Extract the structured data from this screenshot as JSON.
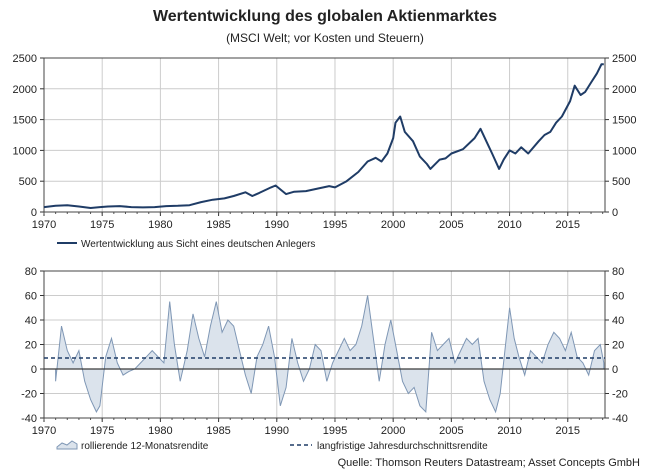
{
  "title": "Wertentwicklung des globalen Aktienmarktes",
  "subtitle": "(MSCI Welt; vor Kosten und Steuern)",
  "source": "Quelle: Thomson Reuters Datastream; Asset Concepts GmbH",
  "colors": {
    "line": "#1f3c66",
    "area_fill": "#dbe3ec",
    "area_stroke": "#7f97b5",
    "grid": "#cccccc",
    "zero_line": "#3a3a3a"
  },
  "chart_data": [
    {
      "type": "line",
      "xlabel": "",
      "ylabel": "",
      "xlim": [
        1970,
        2018.2
      ],
      "ylim": [
        0,
        2500
      ],
      "x_ticks": [
        "1970",
        "1975",
        "1980",
        "1985",
        "1990",
        "1995",
        "2000",
        "2005",
        "2010",
        "2015"
      ],
      "y_ticks": [
        "0",
        "500",
        "1000",
        "1500",
        "2000",
        "2500"
      ],
      "grid": true,
      "legend": "bottom-left",
      "series": [
        {
          "name": "Wertentwicklung aus Sicht eines deutschen Anlegers",
          "x": [
            1970.0,
            1971.0,
            1972.0,
            1973.0,
            1974.0,
            1974.8,
            1975.5,
            1976.5,
            1977.5,
            1978.5,
            1979.5,
            1980.5,
            1981.5,
            1982.5,
            1983.5,
            1984.5,
            1985.5,
            1986.3,
            1987.3,
            1987.9,
            1988.5,
            1989.5,
            1989.9,
            1990.8,
            1991.5,
            1992.5,
            1993.5,
            1994.5,
            1995.0,
            1996.0,
            1997.0,
            1997.8,
            1998.5,
            1999.0,
            1999.5,
            2000.0,
            2000.2,
            2000.6,
            2001.0,
            2001.7,
            2002.3,
            2002.9,
            2003.2,
            2004.0,
            2004.5,
            2005.0,
            2006.0,
            2007.0,
            2007.5,
            2008.0,
            2008.5,
            2009.1,
            2009.5,
            2010.0,
            2010.5,
            2011.0,
            2011.6,
            2012.5,
            2013.0,
            2013.5,
            2014.0,
            2014.5,
            2015.2,
            2015.6,
            2016.1,
            2016.5,
            2017.0,
            2017.5,
            2017.9,
            2018.1
          ],
          "values": [
            80,
            100,
            110,
            90,
            65,
            80,
            90,
            95,
            80,
            75,
            80,
            95,
            100,
            110,
            160,
            200,
            220,
            260,
            320,
            260,
            310,
            400,
            430,
            290,
            330,
            340,
            380,
            420,
            400,
            500,
            650,
            820,
            880,
            820,
            950,
            1200,
            1450,
            1550,
            1300,
            1150,
            900,
            780,
            700,
            850,
            870,
            950,
            1020,
            1200,
            1350,
            1150,
            950,
            700,
            850,
            1000,
            950,
            1050,
            950,
            1150,
            1250,
            1300,
            1450,
            1550,
            1800,
            2050,
            1900,
            1950,
            2100,
            2250,
            2400,
            2400
          ]
        }
      ]
    },
    {
      "type": "area",
      "xlabel": "",
      "ylabel": "",
      "xlim": [
        1970,
        2018.2
      ],
      "ylim": [
        -40,
        80
      ],
      "x_ticks": [
        "1970",
        "1975",
        "1980",
        "1985",
        "1990",
        "1995",
        "2000",
        "2005",
        "2010",
        "2015"
      ],
      "y_ticks": [
        "-40",
        "-20",
        "0",
        "20",
        "40",
        "60",
        "80"
      ],
      "grid": true,
      "legend": "bottom-left",
      "series": [
        {
          "name": "rollierende 12-Monatsrendite",
          "x": [
            1971.0,
            1971.5,
            1972.0,
            1972.5,
            1973.0,
            1973.5,
            1974.0,
            1974.5,
            1974.8,
            1975.3,
            1975.8,
            1976.3,
            1976.8,
            1977.3,
            1977.8,
            1978.3,
            1978.8,
            1979.3,
            1979.8,
            1980.3,
            1980.8,
            1981.2,
            1981.7,
            1982.3,
            1982.8,
            1983.3,
            1983.8,
            1984.3,
            1984.8,
            1985.3,
            1985.8,
            1986.3,
            1986.8,
            1987.3,
            1987.8,
            1988.3,
            1988.8,
            1989.3,
            1989.8,
            1990.3,
            1990.8,
            1991.3,
            1991.8,
            1992.3,
            1992.8,
            1993.3,
            1993.8,
            1994.3,
            1994.8,
            1995.3,
            1995.8,
            1996.3,
            1996.8,
            1997.3,
            1997.8,
            1998.3,
            1998.8,
            1999.3,
            1999.8,
            2000.3,
            2000.8,
            2001.3,
            2001.8,
            2002.3,
            2002.8,
            2003.3,
            2003.8,
            2004.3,
            2004.8,
            2005.3,
            2005.8,
            2006.3,
            2006.8,
            2007.3,
            2007.8,
            2008.3,
            2008.8,
            2009.2,
            2009.6,
            2010.0,
            2010.4,
            2010.8,
            2011.3,
            2011.8,
            2012.3,
            2012.8,
            2013.3,
            2013.8,
            2014.3,
            2014.8,
            2015.3,
            2015.8,
            2016.3,
            2016.8,
            2017.3,
            2017.8,
            2018.1
          ],
          "values": [
            -10,
            35,
            15,
            5,
            15,
            -10,
            -25,
            -35,
            -30,
            10,
            25,
            5,
            -5,
            -2,
            0,
            5,
            10,
            15,
            10,
            5,
            55,
            20,
            -10,
            15,
            45,
            25,
            10,
            35,
            55,
            30,
            40,
            35,
            15,
            -5,
            -20,
            10,
            20,
            35,
            10,
            -30,
            -15,
            25,
            5,
            -10,
            0,
            20,
            15,
            -10,
            5,
            15,
            25,
            15,
            20,
            35,
            60,
            25,
            -10,
            20,
            40,
            15,
            -10,
            -20,
            -15,
            -30,
            -35,
            30,
            15,
            20,
            25,
            5,
            15,
            25,
            20,
            25,
            -10,
            -25,
            -35,
            -20,
            15,
            50,
            25,
            10,
            -5,
            15,
            10,
            5,
            20,
            30,
            25,
            15,
            30,
            10,
            5,
            -5,
            15,
            20,
            5
          ]
        },
        {
          "name": "langfristige Jahresdurchschnittsrendite",
          "x": [
            1970,
            2018.2
          ],
          "values": [
            9,
            9
          ]
        }
      ]
    }
  ]
}
